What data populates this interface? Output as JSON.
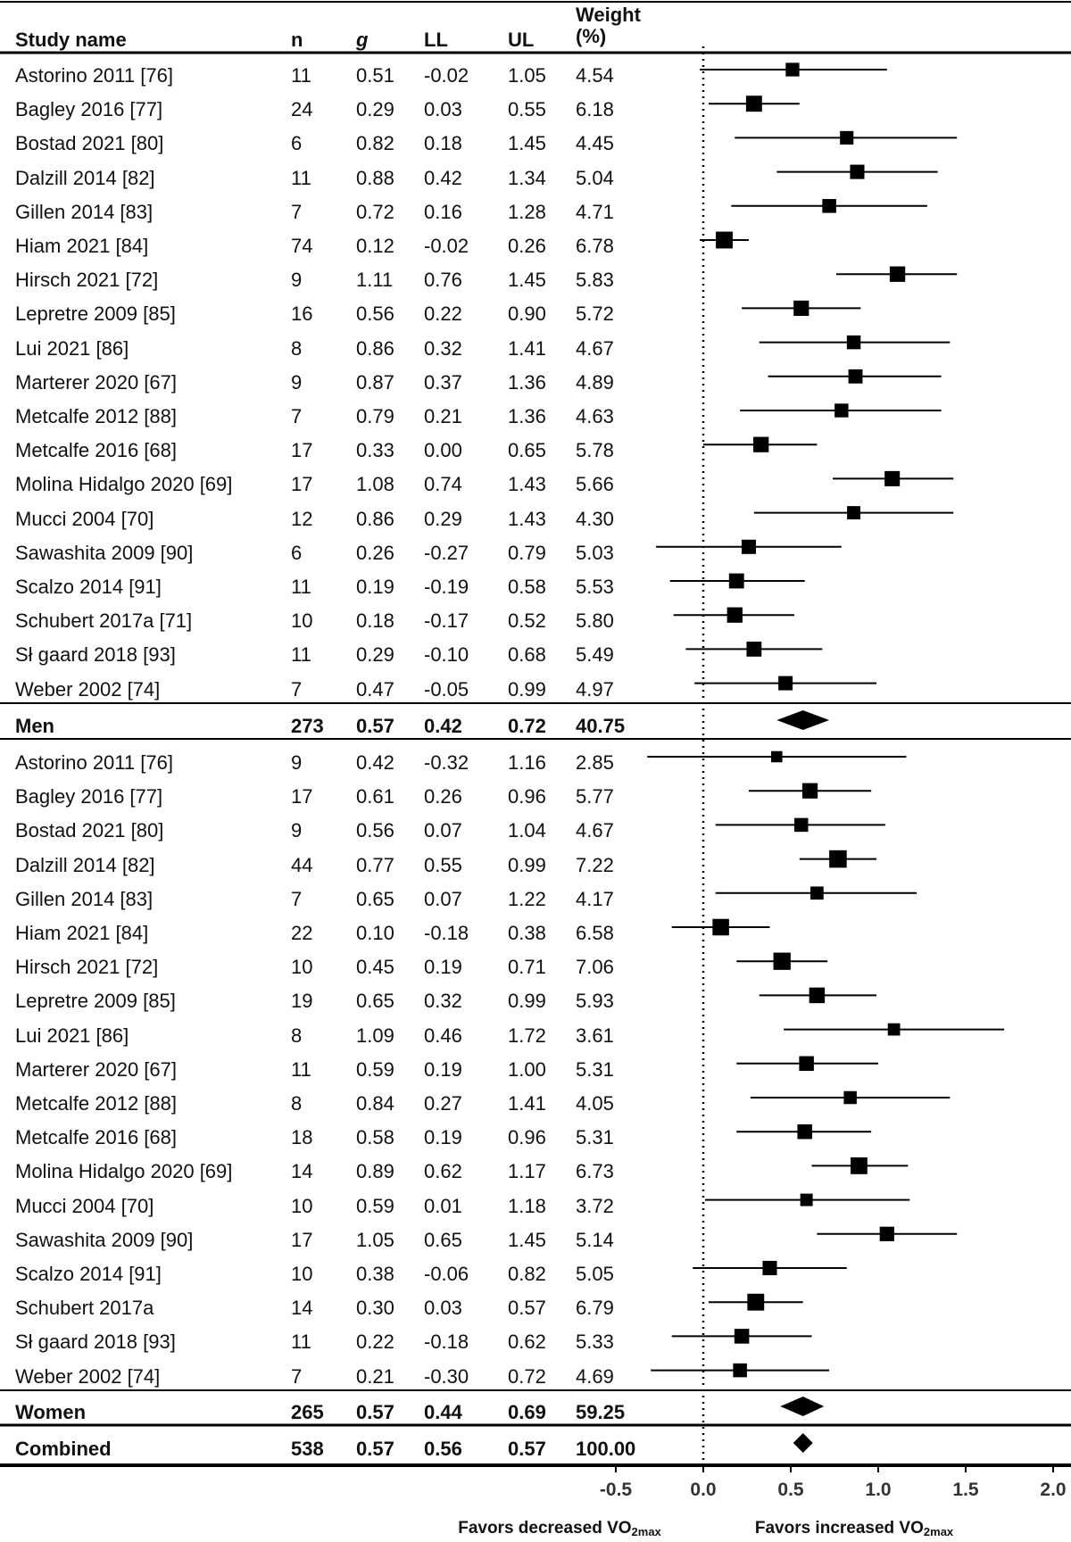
{
  "chart_data": {
    "type": "forest",
    "columns": {
      "study": "Study name",
      "n": "n",
      "g": "g",
      "ll": "LL",
      "ul": "UL",
      "weight": "Weight (%)"
    },
    "groups": [
      {
        "rows": [
          {
            "study": "Astorino 2011 [76]",
            "n": 11,
            "g": 0.51,
            "ll": -0.02,
            "ul": 1.05,
            "weight": 4.54
          },
          {
            "study": "Bagley 2016 [77]",
            "n": 24,
            "g": 0.29,
            "ll": 0.03,
            "ul": 0.55,
            "weight": 6.18
          },
          {
            "study": "Bostad 2021 [80]",
            "n": 6,
            "g": 0.82,
            "ll": 0.18,
            "ul": 1.45,
            "weight": 4.45
          },
          {
            "study": "Dalzill 2014 [82]",
            "n": 11,
            "g": 0.88,
            "ll": 0.42,
            "ul": 1.34,
            "weight": 5.04
          },
          {
            "study": "Gillen 2014 [83]",
            "n": 7,
            "g": 0.72,
            "ll": 0.16,
            "ul": 1.28,
            "weight": 4.71
          },
          {
            "study": "Hiam 2021 [84]",
            "n": 74,
            "g": 0.12,
            "ll": -0.02,
            "ul": 0.26,
            "weight": 6.78
          },
          {
            "study": "Hirsch 2021 [72]",
            "n": 9,
            "g": 1.11,
            "ll": 0.76,
            "ul": 1.45,
            "weight": 5.83
          },
          {
            "study": "Lepretre 2009 [85]",
            "n": 16,
            "g": 0.56,
            "ll": 0.22,
            "ul": 0.9,
            "weight": 5.72,
            "value_labels": {
              "ul": "0.90"
            }
          },
          {
            "study": "Lui 2021 [86]",
            "n": 8,
            "g": 0.86,
            "ll": 0.32,
            "ul": 1.41,
            "weight": 4.67
          },
          {
            "study": "Marterer 2020 [67]",
            "n": 9,
            "g": 0.87,
            "ll": 0.37,
            "ul": 1.36,
            "weight": 4.89
          },
          {
            "study": "Metcalfe 2012 [88]",
            "n": 7,
            "g": 0.79,
            "ll": 0.21,
            "ul": 1.36,
            "weight": 4.63
          },
          {
            "study": "Metcalfe 2016 [68]",
            "n": 17,
            "g": 0.33,
            "ll": 0,
            "ul": 0.65,
            "weight": 5.78,
            "value_labels": {
              "ll": "0.00"
            }
          },
          {
            "study": "Molina Hidalgo 2020 [69]",
            "n": 17,
            "g": 1.08,
            "ll": 0.74,
            "ul": 1.43,
            "weight": 5.66
          },
          {
            "study": "Mucci 2004 [70]",
            "n": 12,
            "g": 0.86,
            "ll": 0.29,
            "ul": 1.43,
            "weight": 4.3,
            "value_labels": {
              "weight": "4.30"
            }
          },
          {
            "study": "Sawashita 2009 [90]",
            "n": 6,
            "g": 0.26,
            "ll": -0.27,
            "ul": 0.79,
            "weight": 5.03
          },
          {
            "study": "Scalzo 2014 [91]",
            "n": 11,
            "g": 0.19,
            "ll": -0.19,
            "ul": 0.58,
            "weight": 5.53
          },
          {
            "study": "Schubert 2017a [71]",
            "n": 10,
            "g": 0.18,
            "ll": -0.17,
            "ul": 0.52,
            "weight": 5.8,
            "value_labels": {
              "weight": "5.80"
            }
          },
          {
            "study": "Sł gaard 2018 [93]",
            "n": 11,
            "g": 0.29,
            "ll": -0.1,
            "ul": 0.68,
            "weight": 5.49,
            "value_labels": {
              "ll": "-0.10"
            }
          },
          {
            "study": "Weber 2002 [74]",
            "n": 7,
            "g": 0.47,
            "ll": -0.05,
            "ul": 0.99,
            "weight": 4.97
          }
        ],
        "summary": {
          "study": "Men",
          "n": 273,
          "g": 0.57,
          "ll": 0.42,
          "ul": 0.72,
          "weight": 40.75
        }
      },
      {
        "rows": [
          {
            "study": "Astorino 2011 [76]",
            "n": 9,
            "g": 0.42,
            "ll": -0.32,
            "ul": 1.16,
            "weight": 2.85
          },
          {
            "study": "Bagley 2016 [77]",
            "n": 17,
            "g": 0.61,
            "ll": 0.26,
            "ul": 0.96,
            "weight": 5.77
          },
          {
            "study": "Bostad 2021 [80]",
            "n": 9,
            "g": 0.56,
            "ll": 0.07,
            "ul": 1.04,
            "weight": 4.67
          },
          {
            "study": "Dalzill 2014 [82]",
            "n": 44,
            "g": 0.77,
            "ll": 0.55,
            "ul": 0.99,
            "weight": 7.22
          },
          {
            "study": "Gillen 2014 [83]",
            "n": 7,
            "g": 0.65,
            "ll": 0.07,
            "ul": 1.22,
            "weight": 4.17
          },
          {
            "study": "Hiam 2021 [84]",
            "n": 22,
            "g": 0.1,
            "ll": -0.18,
            "ul": 0.38,
            "weight": 6.58,
            "value_labels": {
              "g": "0.10"
            }
          },
          {
            "study": "Hirsch 2021 [72]",
            "n": 10,
            "g": 0.45,
            "ll": 0.19,
            "ul": 0.71,
            "weight": 7.06
          },
          {
            "study": "Lepretre 2009 [85]",
            "n": 19,
            "g": 0.65,
            "ll": 0.32,
            "ul": 0.99,
            "weight": 5.93
          },
          {
            "study": "Lui 2021 [86]",
            "n": 8,
            "g": 1.09,
            "ll": 0.46,
            "ul": 1.72,
            "weight": 3.61
          },
          {
            "study": "Marterer 2020 [67]",
            "n": 11,
            "g": 0.59,
            "ll": 0.19,
            "ul": 1,
            "weight": 5.31,
            "value_labels": {
              "ul": "1.00"
            }
          },
          {
            "study": "Metcalfe 2012 [88]",
            "n": 8,
            "g": 0.84,
            "ll": 0.27,
            "ul": 1.41,
            "weight": 4.05
          },
          {
            "study": "Metcalfe 2016 [68]",
            "n": 18,
            "g": 0.58,
            "ll": 0.19,
            "ul": 0.96,
            "weight": 5.31
          },
          {
            "study": "Molina Hidalgo 2020 [69]",
            "n": 14,
            "g": 0.89,
            "ll": 0.62,
            "ul": 1.17,
            "weight": 6.73
          },
          {
            "study": "Mucci 2004 [70]",
            "n": 10,
            "g": 0.59,
            "ll": 0.01,
            "ul": 1.18,
            "weight": 3.72
          },
          {
            "study": "Sawashita 2009 [90]",
            "n": 17,
            "g": 1.05,
            "ll": 0.65,
            "ul": 1.45,
            "weight": 5.14
          },
          {
            "study": "Scalzo 2014 [91]",
            "n": 10,
            "g": 0.38,
            "ll": -0.06,
            "ul": 0.82,
            "weight": 5.05
          },
          {
            "study": "Schubert 2017a",
            "n": 14,
            "g": 0.3,
            "ll": 0.03,
            "ul": 0.57,
            "weight": 6.79,
            "value_labels": {
              "g": "0.30"
            }
          },
          {
            "study": "Sł gaard 2018 [93]",
            "n": 11,
            "g": 0.22,
            "ll": -0.18,
            "ul": 0.62,
            "weight": 5.33
          },
          {
            "study": "Weber 2002 [74]",
            "n": 7,
            "g": 0.21,
            "ll": -0.3,
            "ul": 0.72,
            "weight": 4.69,
            "value_labels": {
              "ll": "-0.30"
            }
          }
        ],
        "summary": {
          "study": "Women",
          "n": 265,
          "g": 0.57,
          "ll": 0.44,
          "ul": 0.69,
          "weight": 59.25
        }
      }
    ],
    "combined": {
      "study": "Combined",
      "n": 538,
      "g": 0.57,
      "ll": 0.56,
      "ul": 0.57,
      "weight": 100,
      "value_labels": {
        "weight": "100.00"
      }
    },
    "xlim": [
      -0.5,
      2.0
    ],
    "xticks": [
      -0.5,
      {
        "value": 0,
        "label": "0.0"
      },
      0.5,
      {
        "value": 1,
        "label": "1.0"
      },
      1.5,
      {
        "value": 2,
        "label": "2.0"
      }
    ],
    "xlabel_left": {
      "text": "Favors decreased VO",
      "sub": "2max"
    },
    "xlabel_right": {
      "text": "Favors increased VO",
      "sub": "2max"
    },
    "color": "#000000"
  }
}
